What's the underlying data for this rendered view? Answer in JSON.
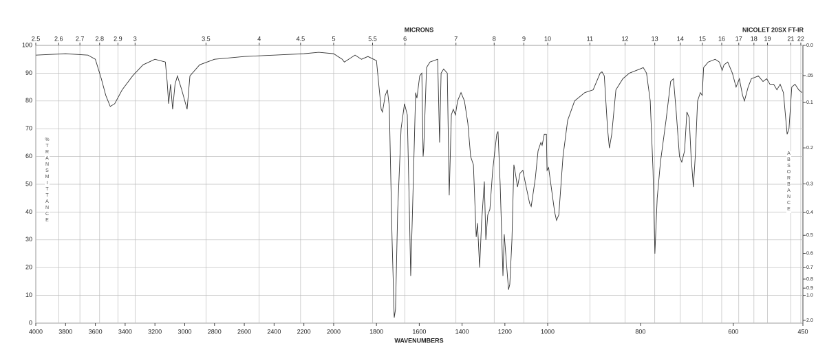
{
  "chart_data": {
    "type": "line",
    "instrument": "NICOLET 20SX FT-IR",
    "xlabel": "WAVENUMBERS",
    "ylabel": "%TRANSMITTANCE",
    "y2label": "ABSORBANCE",
    "top_axis": {
      "label": "MICRONS",
      "ticks": [
        2.5,
        2.6,
        2.7,
        2.8,
        2.9,
        3,
        3.5,
        4,
        4.5,
        5,
        5.5,
        6,
        7,
        8,
        9,
        10,
        11,
        12,
        13,
        14,
        15,
        16,
        17,
        18,
        19,
        21,
        22
      ]
    },
    "xscale": "piecewise",
    "xbreaks": [
      2000,
      1000
    ],
    "xlim": [
      4000,
      450
    ],
    "xticks": [
      4000,
      3800,
      3600,
      3400,
      3200,
      3000,
      2800,
      2600,
      2400,
      2200,
      2000,
      1800,
      1600,
      1400,
      1200,
      1000,
      800,
      600,
      450
    ],
    "ylim": [
      0,
      100
    ],
    "yticks": [
      0,
      10,
      20,
      30,
      40,
      50,
      60,
      70,
      80,
      90,
      100
    ],
    "y2scale": "absorbance",
    "y2ticks": [
      {
        "value": 0,
        "label": "0.0"
      },
      {
        "value": 0.05,
        "label": ".05"
      },
      0.1,
      0.2,
      0.3,
      0.4,
      0.5,
      0.6,
      0.7,
      0.8,
      0.9,
      {
        "value": 1,
        "label": "1.0"
      },
      {
        "value": 2,
        "label": "2.0"
      }
    ],
    "grid": true,
    "color": "#333333",
    "x": [
      4000,
      3800,
      3650,
      3600,
      3560,
      3530,
      3500,
      3470,
      3420,
      3350,
      3280,
      3200,
      3130,
      3118,
      3108,
      3095,
      3081,
      3065,
      3049,
      3020,
      2984,
      2965,
      2900,
      2800,
      2600,
      2400,
      2200,
      2100,
      2000,
      1960,
      1950,
      1900,
      1870,
      1840,
      1800,
      1788,
      1778,
      1772,
      1759,
      1749,
      1740,
      1727,
      1717,
      1711,
      1701,
      1685,
      1669,
      1656,
      1646,
      1640,
      1630,
      1617,
      1611,
      1598,
      1588,
      1582,
      1579,
      1566,
      1550,
      1514,
      1505,
      1498,
      1486,
      1469,
      1460,
      1450,
      1441,
      1431,
      1421,
      1405,
      1389,
      1373,
      1360,
      1347,
      1334,
      1328,
      1318,
      1309,
      1296,
      1289,
      1280,
      1270,
      1257,
      1238,
      1232,
      1222,
      1209,
      1203,
      1193,
      1183,
      1177,
      1167,
      1158,
      1151,
      1141,
      1129,
      1116,
      1103,
      1084,
      1077,
      1058,
      1045,
      1032,
      1026,
      1016,
      1006,
      1003,
      998,
      994,
      985,
      981,
      976,
      967,
      957,
      942,
      920,
      902,
      887,
      883,
      878,
      871,
      867,
      862,
      853,
      838,
      824,
      801,
      794,
      787,
      779,
      773,
      769,
      764,
      757,
      745,
      735,
      729,
      723,
      716,
      711,
      705,
      700,
      695,
      691,
      686,
      682,
      677,
      671,
      667,
      664,
      654,
      639,
      630,
      624,
      620,
      612,
      602,
      594,
      587,
      580,
      576,
      568,
      561,
      553,
      546,
      536,
      528,
      521,
      513,
      506,
      499,
      492,
      484,
      480,
      474,
      467,
      459,
      452
    ],
    "values": [
      96.5,
      97,
      96.5,
      95,
      88,
      82,
      78,
      79,
      84,
      89,
      93,
      95,
      94,
      87,
      79,
      86,
      77,
      86,
      89,
      84,
      77,
      89,
      93,
      95,
      96,
      96.5,
      97,
      97.5,
      97,
      95,
      94,
      96.5,
      95,
      96,
      94.5,
      85,
      77,
      76,
      82,
      84,
      78,
      30,
      2,
      5,
      40,
      70,
      79,
      75,
      40,
      17,
      45,
      83,
      81,
      89,
      90,
      60,
      63,
      92,
      94,
      95,
      65,
      90,
      91.5,
      90,
      46,
      75,
      77,
      75,
      80,
      83,
      80,
      72,
      60,
      57,
      31,
      36,
      20,
      36,
      51,
      30,
      39,
      41,
      55,
      68,
      69,
      50,
      17,
      32,
      22,
      12,
      14,
      30,
      57,
      54,
      49,
      54,
      55,
      50,
      43,
      42,
      52,
      62,
      65,
      64,
      68,
      68,
      55,
      56,
      51,
      40,
      37,
      39,
      60,
      73,
      80,
      83,
      84,
      90,
      90.5,
      89,
      70,
      63,
      68,
      84,
      88,
      90,
      91.5,
      92,
      90,
      80,
      55,
      25,
      45,
      58,
      73,
      87,
      88,
      76,
      60,
      58,
      62,
      76,
      74,
      60,
      49,
      60,
      80,
      83,
      82,
      92,
      94,
      95,
      94,
      91,
      93,
      94,
      90,
      85,
      88,
      82,
      80,
      85,
      88,
      88.5,
      89,
      87,
      88,
      86,
      86,
      84,
      86,
      83,
      68,
      70,
      85,
      86,
      84,
      83
    ]
  }
}
